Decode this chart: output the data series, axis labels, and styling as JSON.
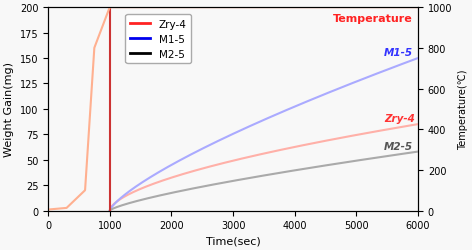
{
  "xlabel": "Time(sec)",
  "ylabel_left": "Weight Gain(mg)",
  "ylabel_right": "Temperature(℃)",
  "xlim": [
    0,
    6000
  ],
  "ylim_left": [
    0,
    200
  ],
  "ylim_right": [
    0,
    1000
  ],
  "breakaway_time": 1000,
  "legend_labels": [
    "Zry-4",
    "M1-5",
    "M2-5"
  ],
  "legend_colors_bright": [
    "#FF2222",
    "#0000EE",
    "#000000"
  ],
  "zry4_curve_color": "#FFB0A8",
  "m15_curve_color": "#AAAAFF",
  "m25_curve_color": "#AAAAAA",
  "temp_curve_color": "#FFB090",
  "vline_color": "#CC3333",
  "temp_label_color": "#FF2222",
  "annot_zry4_color": "#FF3333",
  "annot_m15_color": "#3333FF",
  "annot_m25_color": "#555555",
  "zry4_end": 85,
  "m15_end": 150,
  "m25_end": 58,
  "zry4_power": 0.6,
  "m15_power": 0.75,
  "m25_power": 0.75,
  "bg_color": "#F8F8F8"
}
